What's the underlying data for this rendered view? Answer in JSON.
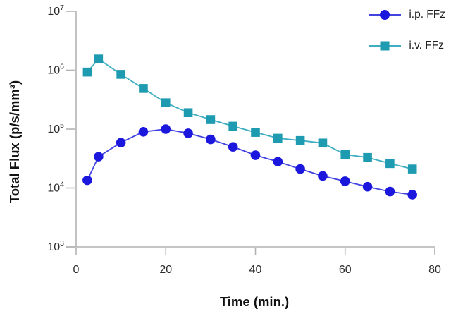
{
  "chart_data": {
    "type": "line",
    "title": "",
    "xlabel": "Time (min.)",
    "ylabel": "Total Flux (p/s/mm³)",
    "x_axis": {
      "scale": "linear",
      "xlim": [
        0,
        80
      ],
      "ticks": [
        0,
        20,
        40,
        60,
        80
      ]
    },
    "y_axis": {
      "scale": "log",
      "ylim_exponents": [
        3,
        7
      ],
      "tick_labels": [
        {
          "base": "10",
          "exp": "3"
        },
        {
          "base": "10",
          "exp": "4"
        },
        {
          "base": "10",
          "exp": "5"
        },
        {
          "base": "10",
          "exp": "6"
        },
        {
          "base": "10",
          "exp": "7"
        }
      ]
    },
    "x": [
      2.5,
      5,
      10,
      15,
      20,
      25,
      30,
      35,
      40,
      45,
      50,
      55,
      60,
      65,
      70,
      75
    ],
    "series": [
      {
        "name": "i.p. FFz",
        "marker": "circle",
        "marker_color": "#1b17dd",
        "line_color": "#4343e2",
        "values": [
          13500,
          34000,
          59000,
          90000,
          100000,
          85000,
          67000,
          50000,
          36000,
          28000,
          21000,
          16000,
          13000,
          10500,
          8700,
          7700
        ]
      },
      {
        "name": "i.v. FFz",
        "marker": "square",
        "marker_color": "#1e9bb0",
        "line_color": "#3faec2",
        "values": [
          930000,
          1550000,
          850000,
          490000,
          280000,
          190000,
          145000,
          112000,
          88000,
          70000,
          64000,
          58000,
          37000,
          33000,
          26000,
          21000
        ]
      }
    ],
    "grid": false,
    "legend_position": "top-right",
    "colors": {
      "axis": "#b2b2b2",
      "tick_label": "#2b2b2b",
      "axis_title": "#111111",
      "background": "#ffffff"
    }
  }
}
